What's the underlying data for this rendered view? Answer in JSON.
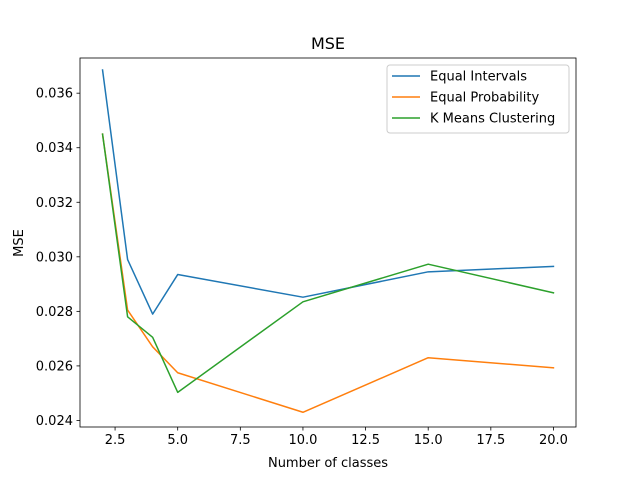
{
  "chart_data": {
    "type": "line",
    "title": "MSE",
    "xlabel": "Number of classes",
    "ylabel": "MSE",
    "xlim": [
      1.1,
      20.9
    ],
    "ylim": [
      0.02376,
      0.03729
    ],
    "x_ticks": [
      2.5,
      5.0,
      7.5,
      10.0,
      12.5,
      15.0,
      17.5,
      20.0
    ],
    "x_tick_labels": [
      "2.5",
      "5.0",
      "7.5",
      "10.0",
      "12.5",
      "15.0",
      "17.5",
      "20.0"
    ],
    "y_ticks": [
      0.024,
      0.026,
      0.028,
      0.03,
      0.032,
      0.034,
      0.036
    ],
    "y_tick_labels": [
      "0.024",
      "0.026",
      "0.028",
      "0.030",
      "0.032",
      "0.034",
      "0.036"
    ],
    "grid": false,
    "legend_position": "upper right",
    "series": [
      {
        "name": "Equal Intervals",
        "color": "#1f77b4",
        "x": [
          2,
          3,
          4,
          5,
          10,
          15,
          20
        ],
        "y": [
          0.03685,
          0.0299,
          0.0279,
          0.02935,
          0.02852,
          0.02945,
          0.02965
        ]
      },
      {
        "name": "Equal Probability",
        "color": "#ff7f0e",
        "x": [
          2,
          3,
          4,
          5,
          10,
          15,
          20
        ],
        "y": [
          0.0345,
          0.02805,
          0.0267,
          0.02575,
          0.0243,
          0.0263,
          0.02593
        ]
      },
      {
        "name": "K Means Clustering",
        "color": "#2ca02c",
        "x": [
          2,
          3,
          4,
          5,
          10,
          15,
          20
        ],
        "y": [
          0.0345,
          0.0278,
          0.02705,
          0.02503,
          0.02835,
          0.02973,
          0.02868
        ]
      }
    ]
  }
}
